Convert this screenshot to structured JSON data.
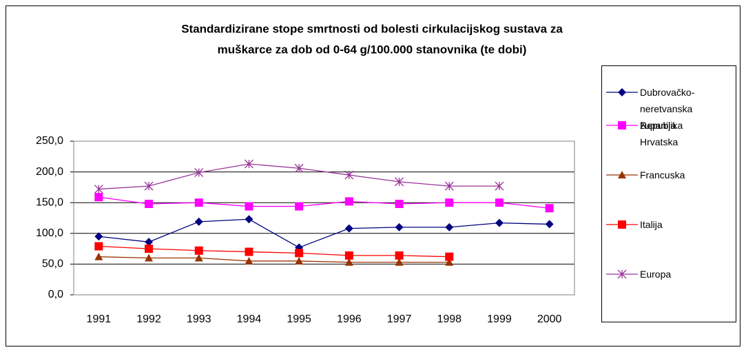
{
  "chart_data": {
    "type": "line",
    "title": [
      "Standardizirane stope smrtnosti od bolesti cirkulacijskog sustava za",
      "muškarce za dob od 0-64 g/100.000 stanovnika (te dobi)"
    ],
    "categories": [
      "1991",
      "1992",
      "1993",
      "1994",
      "1995",
      "1996",
      "1997",
      "1998",
      "1999",
      "2000"
    ],
    "ylim": [
      0,
      250
    ],
    "yticks": [
      {
        "value": 0,
        "label": "0,0"
      },
      {
        "value": 50,
        "label": "50,0"
      },
      {
        "value": 100,
        "label": "100,0"
      },
      {
        "value": 150,
        "label": "150,0"
      },
      {
        "value": 200,
        "label": "200,0"
      },
      {
        "value": 250,
        "label": "250,0"
      }
    ],
    "grid": true,
    "legend": "right",
    "series": [
      {
        "name": "Dubrovačko-neretvanska županija",
        "color": "#000080",
        "marker": "diamond",
        "values": [
          95,
          86,
          119,
          123,
          77,
          108,
          110,
          110,
          117,
          115
        ]
      },
      {
        "name": "Republika Hrvatska",
        "color": "#ff00ff",
        "marker": "square",
        "values": [
          159,
          148,
          150,
          144,
          144,
          152,
          148,
          150,
          150,
          141
        ]
      },
      {
        "name": "Francuska",
        "color": "#993300",
        "marker": "triangle",
        "values": [
          62,
          60,
          60,
          55,
          55,
          53,
          53,
          53,
          null,
          null
        ]
      },
      {
        "name": "Italija",
        "color": "#ff0000",
        "marker": "square",
        "values": [
          79,
          75,
          72,
          70,
          68,
          64,
          64,
          62,
          null,
          null
        ]
      },
      {
        "name": "Europa",
        "color": "#993399",
        "marker": "star",
        "values": [
          172,
          177,
          199,
          213,
          206,
          195,
          184,
          177,
          177,
          null
        ]
      }
    ]
  }
}
